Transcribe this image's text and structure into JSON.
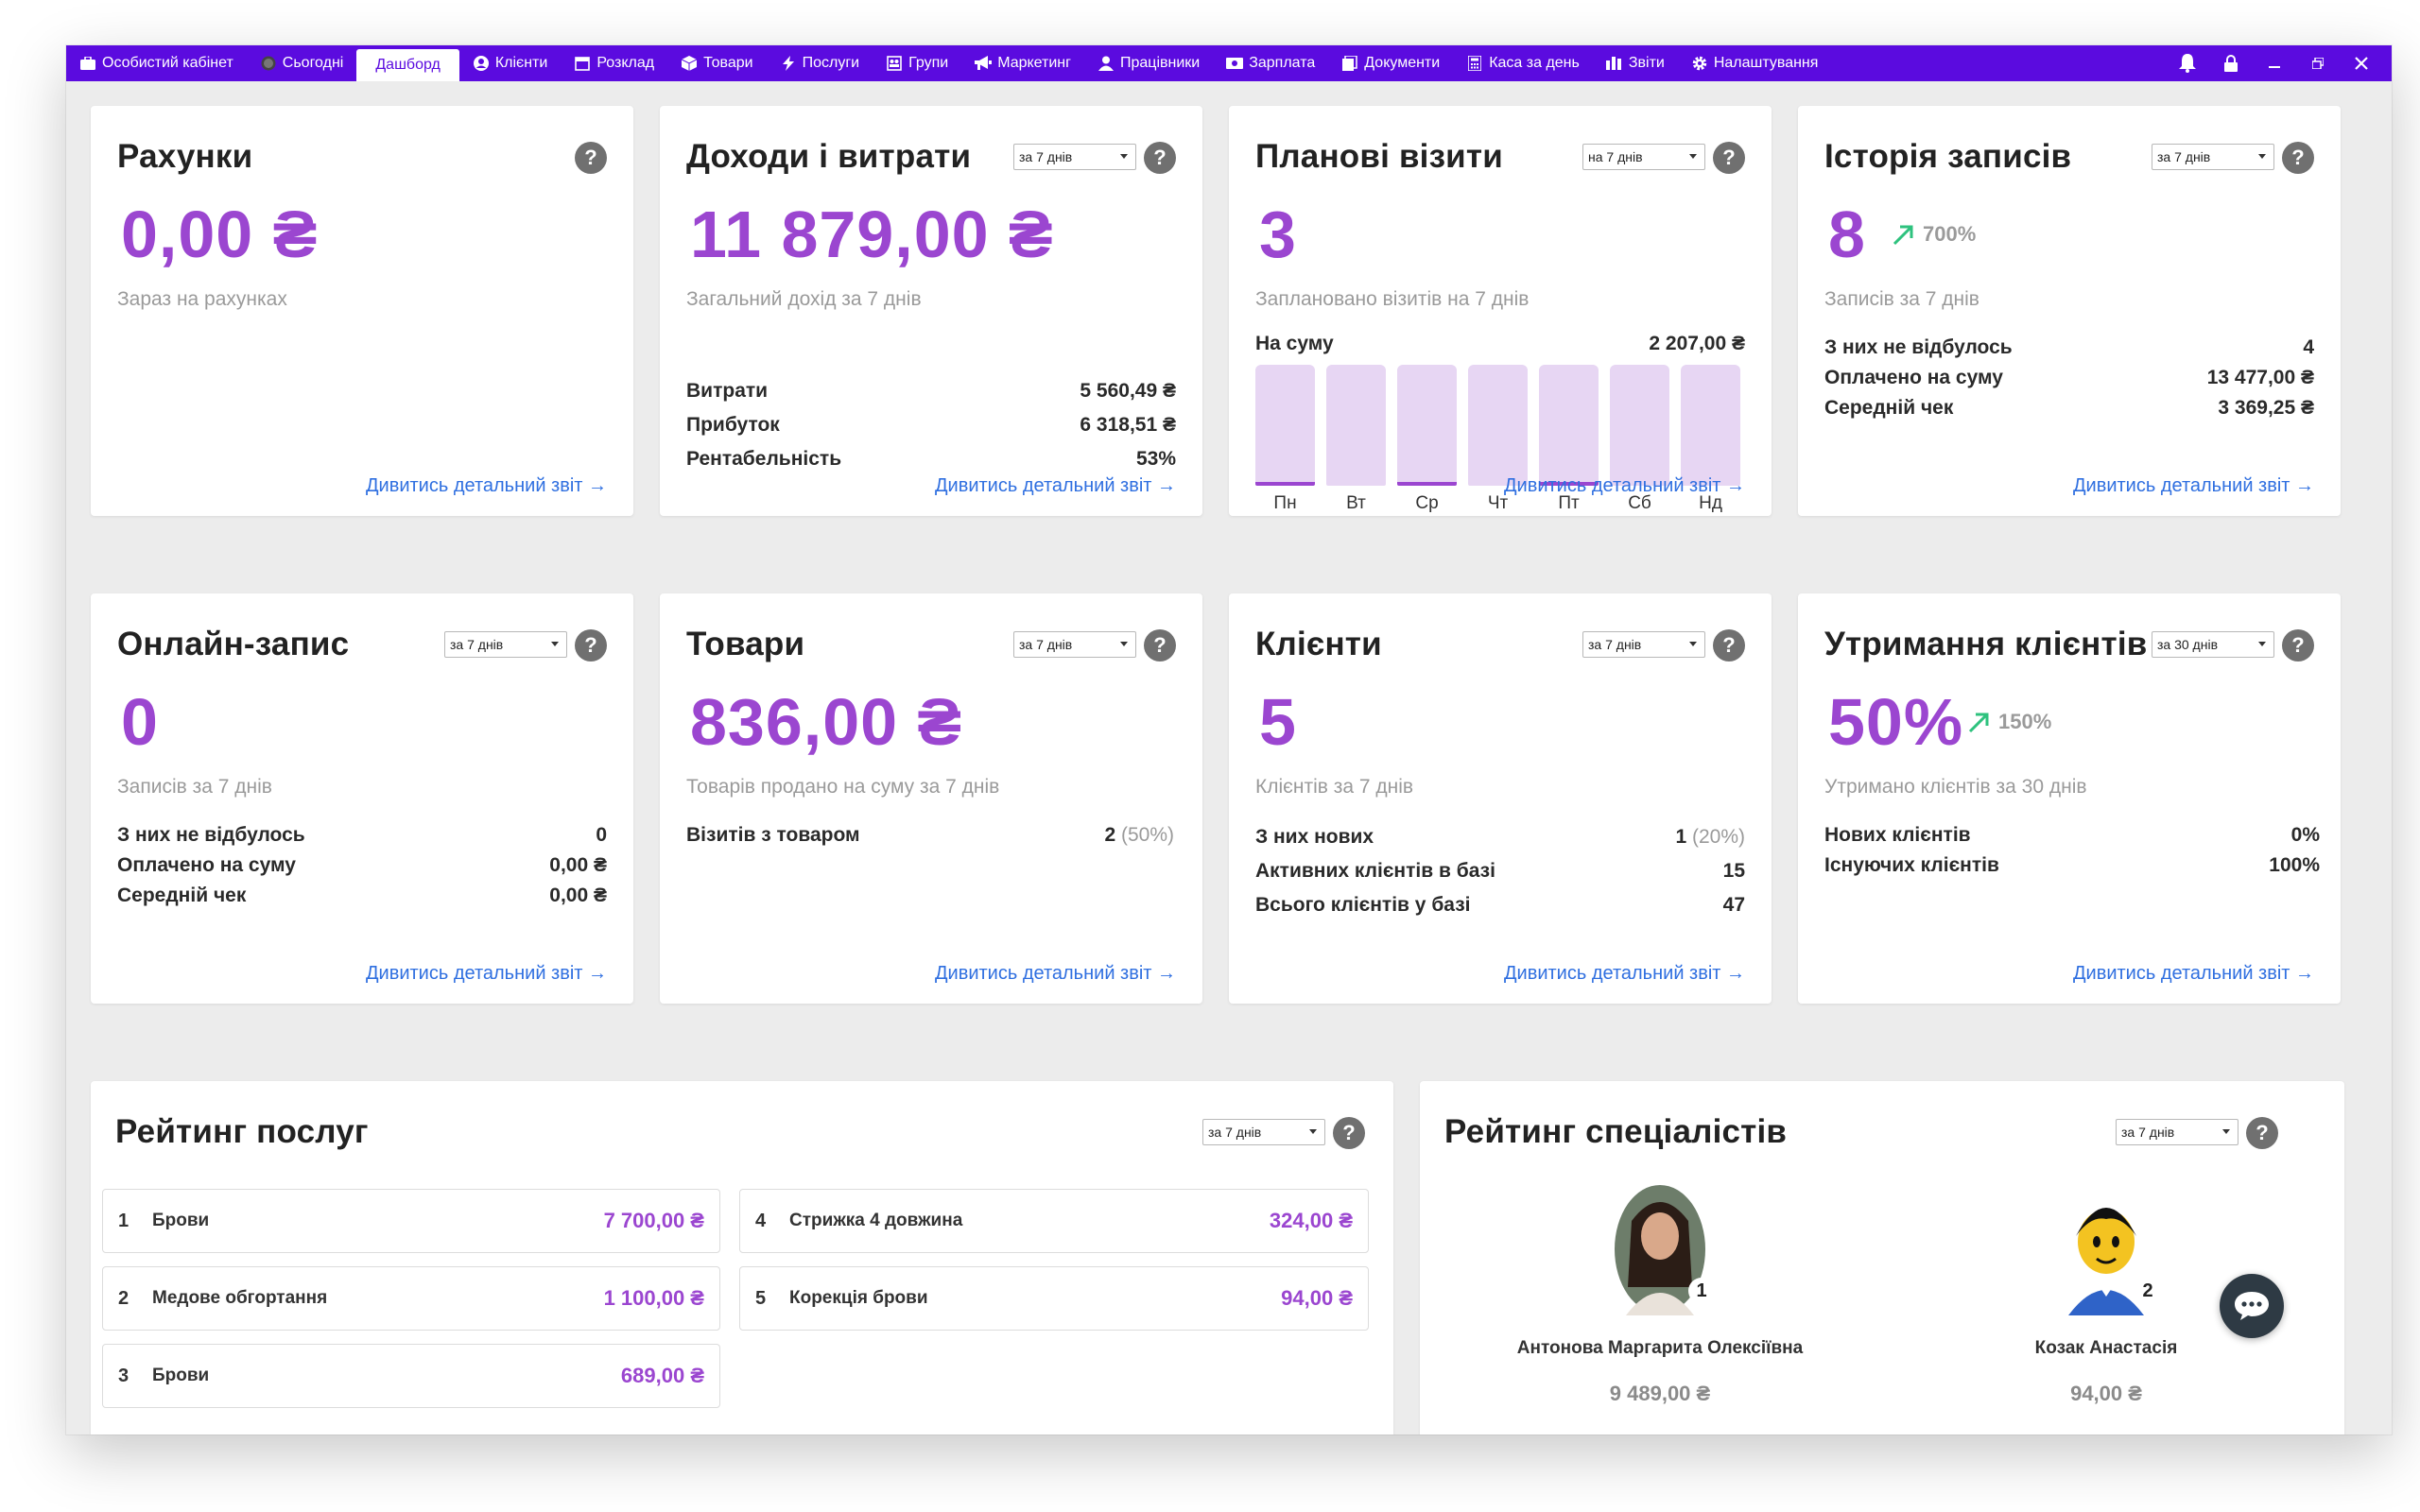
{
  "nav": {
    "items": [
      {
        "label": "Особистий кабінет"
      },
      {
        "label": "Сьогодні"
      },
      {
        "label": "Дашборд"
      },
      {
        "label": "Клієнти"
      },
      {
        "label": "Розклад"
      },
      {
        "label": "Товари"
      },
      {
        "label": "Послуги"
      },
      {
        "label": "Групи"
      },
      {
        "label": "Маркетинг"
      },
      {
        "label": "Працівники"
      },
      {
        "label": "Зарплата"
      },
      {
        "label": "Документи"
      },
      {
        "label": "Каса за день"
      },
      {
        "label": "Звіти"
      },
      {
        "label": "Налаштування"
      }
    ],
    "active_index": 2
  },
  "colors": {
    "brand": "#5b0bdf",
    "accent": "#9b46d0",
    "link": "#2f6fe0",
    "trend_up": "#2ec27e"
  },
  "link_label": "Дивитись детальний звіт →",
  "help_label": "?",
  "accounts": {
    "title": "Рахунки",
    "value": "0,00 ₴",
    "subtitle": "Зараз на рахунках"
  },
  "income": {
    "title": "Доходи і витрати",
    "period": "за 7 днів",
    "value": "11 879,00 ₴",
    "subtitle": "Загальний дохід за 7 днів",
    "rows": [
      {
        "label": "Витрати",
        "value": "5 560,49 ₴"
      },
      {
        "label": "Прибуток",
        "value": "6 318,51 ₴"
      },
      {
        "label": "Рентабельність",
        "value": "53%"
      }
    ]
  },
  "planned": {
    "title": "Планові візити",
    "period": "на 7 днів",
    "value": "3",
    "subtitle": "Заплановано візитів на 7 днів",
    "sum_label": "На суму",
    "sum_value": "2 207,00 ₴",
    "days": [
      {
        "label": "Пн",
        "fill": 0.03
      },
      {
        "label": "Вт",
        "fill": 0.0
      },
      {
        "label": "Ср",
        "fill": 0.02
      },
      {
        "label": "Чт",
        "fill": 0.0
      },
      {
        "label": "Пт",
        "fill": 0.02
      },
      {
        "label": "Сб",
        "fill": 0.0
      },
      {
        "label": "Нд",
        "fill": 0.0
      }
    ]
  },
  "history": {
    "title": "Історія записів",
    "period": "за 7 днів",
    "value": "8",
    "trend": "700%",
    "subtitle": "Записів за 7 днів",
    "rows": [
      {
        "label": "З них не відбулось",
        "value": "4"
      },
      {
        "label": "Оплачено на суму",
        "value": "13 477,00 ₴"
      },
      {
        "label": "Середній чек",
        "value": "3 369,25 ₴"
      }
    ]
  },
  "online": {
    "title": "Онлайн-запис",
    "period": "за 7 днів",
    "value": "0",
    "subtitle": "Записів за 7 днів",
    "rows": [
      {
        "label": "З них не відбулось",
        "value": "0"
      },
      {
        "label": "Оплачено на суму",
        "value": "0,00 ₴"
      },
      {
        "label": "Середній чек",
        "value": "0,00 ₴"
      }
    ]
  },
  "goods": {
    "title": "Товари",
    "period": "за 7 днів",
    "value": "836,00 ₴",
    "subtitle": "Товарів продано на суму за 7 днів",
    "rows": [
      {
        "label": "Візитів з товаром",
        "value": "2",
        "extra": "(50%)"
      }
    ]
  },
  "clients": {
    "title": "Клієнти",
    "period": "за 7 днів",
    "value": "5",
    "subtitle": "Клієнтів за 7 днів",
    "rows": [
      {
        "label": "З них нових",
        "value": "1",
        "extra": "(20%)"
      },
      {
        "label": "Активних клієнтів в базі",
        "value": "15"
      },
      {
        "label": "Всього клієнтів у базі",
        "value": "47"
      }
    ]
  },
  "retention": {
    "title": "Утримання клієнтів",
    "period": "за 30 днів",
    "value": "50%",
    "trend": "150%",
    "subtitle": "Утримано клієнтів за 30 днів",
    "rows": [
      {
        "label": "Нових клієнтів",
        "value": "0%"
      },
      {
        "label": "Існуючих клієнтів",
        "value": "100%"
      }
    ]
  },
  "services_rating": {
    "title": "Рейтинг послуг",
    "period": "за 7 днів",
    "items": [
      {
        "rank": "1",
        "name": "Брови",
        "value": "7 700,00 ₴"
      },
      {
        "rank": "2",
        "name": "Медове обгортання",
        "value": "1 100,00 ₴"
      },
      {
        "rank": "3",
        "name": "Брови",
        "value": "689,00 ₴"
      },
      {
        "rank": "4",
        "name": "Стрижка 4 довжина",
        "value": "324,00 ₴"
      },
      {
        "rank": "5",
        "name": "Корекція брови",
        "value": "94,00 ₴"
      }
    ]
  },
  "specialists_rating": {
    "title": "Рейтинг спеціалістів",
    "period": "за 7 днів",
    "items": [
      {
        "rank": "1",
        "name": "Антонова Маргарита Олексіївна",
        "value": "9 489,00 ₴"
      },
      {
        "rank": "2",
        "name": "Козак Анастасія",
        "value": "94,00 ₴"
      }
    ]
  }
}
